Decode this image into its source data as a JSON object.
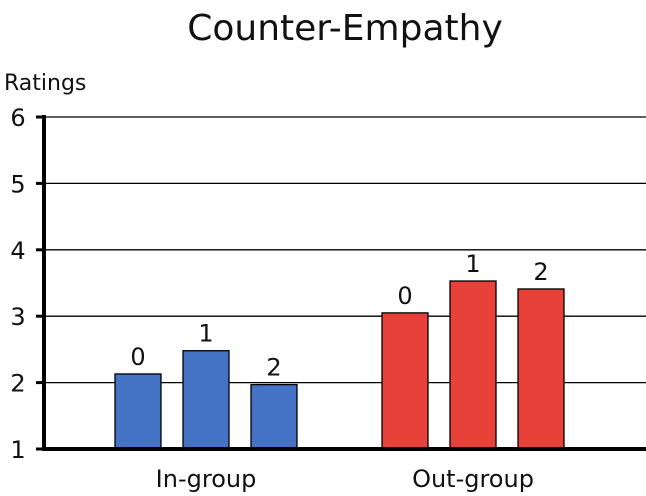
{
  "chart_data": {
    "type": "bar",
    "title": "Counter-Empathy",
    "ylabel": "Ratings",
    "xlabel": "",
    "ylim": [
      1,
      6
    ],
    "yticks": [
      1,
      2,
      3,
      4,
      5,
      6
    ],
    "grid": true,
    "categories": [
      "In-group",
      "Out-group"
    ],
    "groups": [
      {
        "name": "In-group",
        "color": "#4472c4",
        "bars": [
          {
            "label": "0",
            "value": 2.13
          },
          {
            "label": "1",
            "value": 2.48
          },
          {
            "label": "2",
            "value": 1.97
          }
        ]
      },
      {
        "name": "Out-group",
        "color": "#e8413a",
        "bars": [
          {
            "label": "0",
            "value": 3.05
          },
          {
            "label": "1",
            "value": 3.53
          },
          {
            "label": "2",
            "value": 3.41
          }
        ]
      }
    ]
  }
}
